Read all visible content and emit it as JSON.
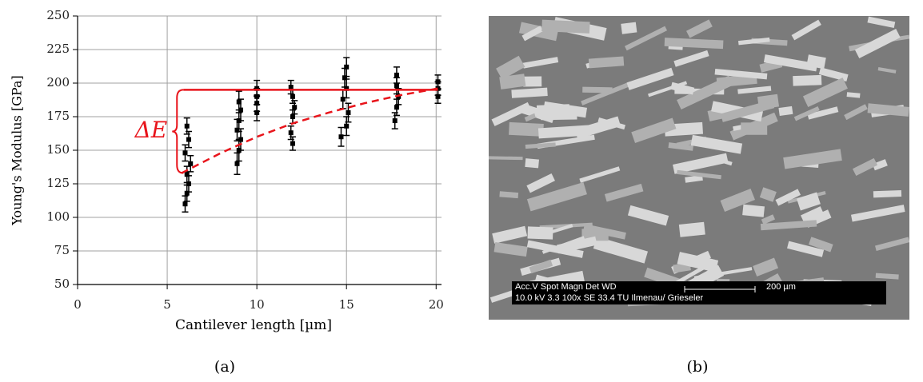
{
  "chart_data": {
    "type": "scatter",
    "x_label": "Cantilever length [µm]",
    "y_label": "Young's Modulus [GPa]",
    "x": [
      6.0,
      6.1,
      6.2,
      6.1,
      6.3,
      6.0,
      6.2,
      6.1,
      8.9,
      9.0,
      9.1,
      8.9,
      9.0,
      9.1,
      9.0,
      10.0,
      10.0,
      10.0,
      10.0,
      12.0,
      11.9,
      12.0,
      12.1,
      12.0,
      11.9,
      14.7,
      15.0,
      15.1,
      14.8,
      15.0,
      14.9,
      15.0,
      17.7,
      17.8,
      17.9,
      17.8,
      17.8,
      20.1,
      20.1,
      20.1
    ],
    "values": [
      110,
      118,
      125,
      132,
      140,
      148,
      158,
      168,
      140,
      150,
      158,
      165,
      172,
      180,
      186,
      178,
      185,
      190,
      196,
      155,
      163,
      175,
      182,
      190,
      197,
      160,
      168,
      178,
      188,
      196,
      204,
      212,
      172,
      182,
      190,
      198,
      206,
      190,
      196,
      201
    ],
    "errors": [
      6,
      6,
      6,
      6,
      6,
      6,
      6,
      6,
      8,
      8,
      8,
      8,
      8,
      8,
      8,
      6,
      6,
      6,
      6,
      5,
      5,
      5,
      5,
      5,
      5,
      7,
      7,
      7,
      7,
      7,
      7,
      7,
      6,
      6,
      6,
      6,
      6,
      5,
      5,
      5
    ],
    "color": "#000000",
    "xlim": [
      0,
      20.3
    ],
    "ylim": [
      50,
      250
    ],
    "xticks": [
      0,
      5,
      10,
      15,
      20
    ],
    "yticks": [
      50,
      75,
      100,
      125,
      150,
      175,
      200,
      225,
      250
    ],
    "grid": true,
    "reference_line": {
      "value": 195,
      "x": [
        5.9,
        20.1
      ],
      "color": "#e8141b"
    },
    "trend_line": {
      "x": [
        5.8,
        8,
        10,
        12,
        14,
        16,
        18,
        20.1
      ],
      "values": [
        133,
        148,
        160,
        170,
        178,
        185,
        191,
        196
      ],
      "color": "#e8141b",
      "dashed": true
    },
    "annotation": "ΔE",
    "caption": "(a)"
  },
  "sem_image": {
    "caption": "(b)",
    "info_row1": "Acc.V   Spot  Magn      Det   WD",
    "info_row2": "10.0 kV  3.3    100x       SE    33.4  TU Ilmenau/ Grieseler",
    "scale_label": "200 µm"
  }
}
